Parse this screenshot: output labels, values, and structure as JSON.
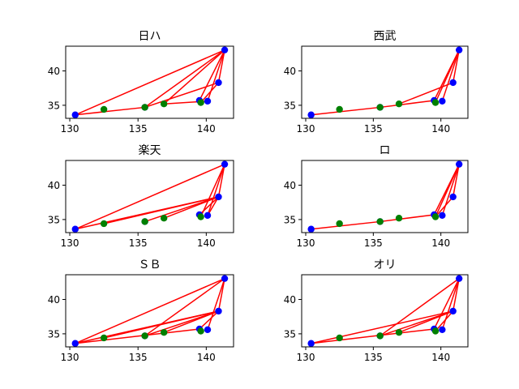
{
  "chart_data": [
    {
      "type": "scatter",
      "title": "日ハ",
      "xlim": [
        129.7,
        142.0
      ],
      "ylim": [
        33.1,
        43.6
      ],
      "xticks": [
        130,
        135,
        140
      ],
      "yticks": [
        35,
        40
      ],
      "series": [
        {
          "color": "#0000ff",
          "points": [
            [
              130.4,
              33.6
            ],
            [
              135.5,
              34.7
            ],
            [
              139.5,
              35.7
            ],
            [
              140.1,
              35.6
            ],
            [
              140.9,
              38.3
            ],
            [
              141.35,
              43.05
            ]
          ]
        },
        {
          "color": "#008000",
          "points": [
            [
              132.5,
              34.4
            ],
            [
              135.5,
              34.7
            ],
            [
              136.9,
              35.2
            ],
            [
              139.6,
              35.4
            ]
          ]
        }
      ],
      "lines": {
        "color": "#ff0000",
        "segments": [
          [
            [
              130.4,
              33.6
            ],
            [
              141.35,
              43.05
            ]
          ],
          [
            [
              130.4,
              33.6
            ],
            [
              135.5,
              34.7
            ]
          ],
          [
            [
              135.5,
              34.7
            ],
            [
              141.35,
              43.05
            ]
          ],
          [
            [
              135.5,
              34.7
            ],
            [
              140.9,
              38.3
            ]
          ],
          [
            [
              136.9,
              35.2
            ],
            [
              141.35,
              43.05
            ]
          ],
          [
            [
              139.5,
              35.7
            ],
            [
              141.35,
              43.05
            ]
          ],
          [
            [
              140.1,
              35.6
            ],
            [
              141.35,
              43.05
            ]
          ],
          [
            [
              140.9,
              38.3
            ],
            [
              141.35,
              43.05
            ]
          ],
          [
            [
              136.9,
              35.2
            ],
            [
              140.1,
              35.6
            ]
          ],
          [
            [
              139.6,
              35.4
            ],
            [
              140.9,
              38.3
            ]
          ]
        ]
      }
    },
    {
      "type": "scatter",
      "title": "西武",
      "xlim": [
        129.7,
        142.0
      ],
      "ylim": [
        33.1,
        43.6
      ],
      "xticks": [
        130,
        135,
        140
      ],
      "yticks": [
        35,
        40
      ],
      "series": [
        {
          "color": "#0000ff",
          "points": [
            [
              130.4,
              33.6
            ],
            [
              135.5,
              34.7
            ],
            [
              139.5,
              35.7
            ],
            [
              140.1,
              35.6
            ],
            [
              140.9,
              38.3
            ],
            [
              141.35,
              43.05
            ]
          ]
        },
        {
          "color": "#008000",
          "points": [
            [
              132.5,
              34.4
            ],
            [
              135.5,
              34.7
            ],
            [
              136.9,
              35.2
            ],
            [
              139.6,
              35.4
            ]
          ]
        }
      ],
      "lines": {
        "color": "#ff0000",
        "segments": [
          [
            [
              130.4,
              33.6
            ],
            [
              135.5,
              34.7
            ]
          ],
          [
            [
              135.5,
              34.7
            ],
            [
              139.5,
              35.7
            ]
          ],
          [
            [
              139.5,
              35.7
            ],
            [
              141.35,
              43.05
            ]
          ],
          [
            [
              139.6,
              35.4
            ],
            [
              141.35,
              43.05
            ]
          ],
          [
            [
              140.1,
              35.6
            ],
            [
              141.35,
              43.05
            ]
          ],
          [
            [
              140.9,
              38.3
            ],
            [
              141.35,
              43.05
            ]
          ],
          [
            [
              136.9,
              35.2
            ],
            [
              140.9,
              38.3
            ]
          ]
        ]
      }
    },
    {
      "type": "scatter",
      "title": "楽天",
      "xlim": [
        129.7,
        142.0
      ],
      "ylim": [
        33.1,
        43.6
      ],
      "xticks": [
        130,
        135,
        140
      ],
      "yticks": [
        35,
        40
      ],
      "series": [
        {
          "color": "#0000ff",
          "points": [
            [
              130.4,
              33.6
            ],
            [
              135.5,
              34.7
            ],
            [
              139.5,
              35.7
            ],
            [
              140.1,
              35.6
            ],
            [
              140.9,
              38.3
            ],
            [
              141.35,
              43.05
            ]
          ]
        },
        {
          "color": "#008000",
          "points": [
            [
              132.5,
              34.4
            ],
            [
              135.5,
              34.7
            ],
            [
              136.9,
              35.2
            ],
            [
              139.6,
              35.4
            ]
          ]
        }
      ],
      "lines": {
        "color": "#ff0000",
        "segments": [
          [
            [
              130.4,
              33.6
            ],
            [
              141.35,
              43.05
            ]
          ],
          [
            [
              130.4,
              33.6
            ],
            [
              140.9,
              38.3
            ]
          ],
          [
            [
              132.5,
              34.4
            ],
            [
              140.9,
              38.3
            ]
          ],
          [
            [
              135.5,
              34.7
            ],
            [
              140.9,
              38.3
            ]
          ],
          [
            [
              136.9,
              35.2
            ],
            [
              140.9,
              38.3
            ]
          ],
          [
            [
              139.5,
              35.7
            ],
            [
              140.9,
              38.3
            ]
          ],
          [
            [
              140.1,
              35.6
            ],
            [
              140.9,
              38.3
            ]
          ],
          [
            [
              140.9,
              38.3
            ],
            [
              141.35,
              43.05
            ]
          ],
          [
            [
              139.6,
              35.4
            ],
            [
              141.35,
              43.05
            ]
          ],
          [
            [
              140.1,
              35.6
            ],
            [
              141.35,
              43.05
            ]
          ]
        ]
      }
    },
    {
      "type": "scatter",
      "title": "ロ",
      "xlim": [
        129.7,
        142.0
      ],
      "ylim": [
        33.1,
        43.6
      ],
      "xticks": [
        130,
        135,
        140
      ],
      "yticks": [
        35,
        40
      ],
      "series": [
        {
          "color": "#0000ff",
          "points": [
            [
              130.4,
              33.6
            ],
            [
              135.5,
              34.7
            ],
            [
              139.5,
              35.7
            ],
            [
              140.1,
              35.6
            ],
            [
              140.9,
              38.3
            ],
            [
              141.35,
              43.05
            ]
          ]
        },
        {
          "color": "#008000",
          "points": [
            [
              132.5,
              34.4
            ],
            [
              135.5,
              34.7
            ],
            [
              136.9,
              35.2
            ],
            [
              139.6,
              35.4
            ]
          ]
        }
      ],
      "lines": {
        "color": "#ff0000",
        "segments": [
          [
            [
              130.4,
              33.6
            ],
            [
              135.5,
              34.7
            ]
          ],
          [
            [
              135.5,
              34.7
            ],
            [
              139.5,
              35.7
            ]
          ],
          [
            [
              139.5,
              35.7
            ],
            [
              141.35,
              43.05
            ]
          ],
          [
            [
              139.6,
              35.4
            ],
            [
              141.35,
              43.05
            ]
          ],
          [
            [
              140.1,
              35.6
            ],
            [
              141.35,
              43.05
            ]
          ],
          [
            [
              140.9,
              38.3
            ],
            [
              141.35,
              43.05
            ]
          ],
          [
            [
              139.6,
              35.4
            ],
            [
              140.9,
              38.3
            ]
          ]
        ]
      }
    },
    {
      "type": "scatter",
      "title": "ＳＢ",
      "xlim": [
        129.7,
        142.0
      ],
      "ylim": [
        33.1,
        43.6
      ],
      "xticks": [
        130,
        135,
        140
      ],
      "yticks": [
        35,
        40
      ],
      "series": [
        {
          "color": "#0000ff",
          "points": [
            [
              130.4,
              33.6
            ],
            [
              135.5,
              34.7
            ],
            [
              139.5,
              35.7
            ],
            [
              140.1,
              35.6
            ],
            [
              140.9,
              38.3
            ],
            [
              141.35,
              43.05
            ]
          ]
        },
        {
          "color": "#008000",
          "points": [
            [
              132.5,
              34.4
            ],
            [
              135.5,
              34.7
            ],
            [
              136.9,
              35.2
            ],
            [
              139.6,
              35.4
            ]
          ]
        }
      ],
      "lines": {
        "color": "#ff0000",
        "segments": [
          [
            [
              130.4,
              33.6
            ],
            [
              141.35,
              43.05
            ]
          ],
          [
            [
              130.4,
              33.6
            ],
            [
              140.9,
              38.3
            ]
          ],
          [
            [
              130.4,
              33.6
            ],
            [
              139.5,
              35.7
            ]
          ],
          [
            [
              132.5,
              34.4
            ],
            [
              140.9,
              38.3
            ]
          ],
          [
            [
              135.5,
              34.7
            ],
            [
              140.9,
              38.3
            ]
          ],
          [
            [
              135.5,
              34.7
            ],
            [
              141.35,
              43.05
            ]
          ],
          [
            [
              136.9,
              35.2
            ],
            [
              140.9,
              38.3
            ]
          ],
          [
            [
              139.5,
              35.7
            ],
            [
              140.9,
              38.3
            ]
          ],
          [
            [
              140.1,
              35.6
            ],
            [
              141.35,
              43.05
            ]
          ],
          [
            [
              140.9,
              38.3
            ],
            [
              141.35,
              43.05
            ]
          ]
        ]
      }
    },
    {
      "type": "scatter",
      "title": "オリ",
      "xlim": [
        129.7,
        142.0
      ],
      "ylim": [
        33.1,
        43.6
      ],
      "xticks": [
        130,
        135,
        140
      ],
      "yticks": [
        35,
        40
      ],
      "series": [
        {
          "color": "#0000ff",
          "points": [
            [
              130.4,
              33.6
            ],
            [
              135.5,
              34.7
            ],
            [
              139.5,
              35.7
            ],
            [
              140.1,
              35.6
            ],
            [
              140.9,
              38.3
            ],
            [
              141.35,
              43.05
            ]
          ]
        },
        {
          "color": "#008000",
          "points": [
            [
              132.5,
              34.4
            ],
            [
              135.5,
              34.7
            ],
            [
              136.9,
              35.2
            ],
            [
              139.6,
              35.4
            ]
          ]
        }
      ],
      "lines": {
        "color": "#ff0000",
        "segments": [
          [
            [
              130.4,
              33.6
            ],
            [
              140.9,
              38.3
            ]
          ],
          [
            [
              130.4,
              33.6
            ],
            [
              139.5,
              35.7
            ]
          ],
          [
            [
              135.5,
              34.7
            ],
            [
              141.35,
              43.05
            ]
          ],
          [
            [
              135.5,
              34.7
            ],
            [
              140.9,
              38.3
            ]
          ],
          [
            [
              136.9,
              35.2
            ],
            [
              140.9,
              38.3
            ]
          ],
          [
            [
              139.5,
              35.7
            ],
            [
              141.35,
              43.05
            ]
          ],
          [
            [
              140.1,
              35.6
            ],
            [
              141.35,
              43.05
            ]
          ],
          [
            [
              140.9,
              38.3
            ],
            [
              141.35,
              43.05
            ]
          ],
          [
            [
              139.6,
              35.4
            ],
            [
              140.9,
              38.3
            ]
          ]
        ]
      }
    }
  ]
}
